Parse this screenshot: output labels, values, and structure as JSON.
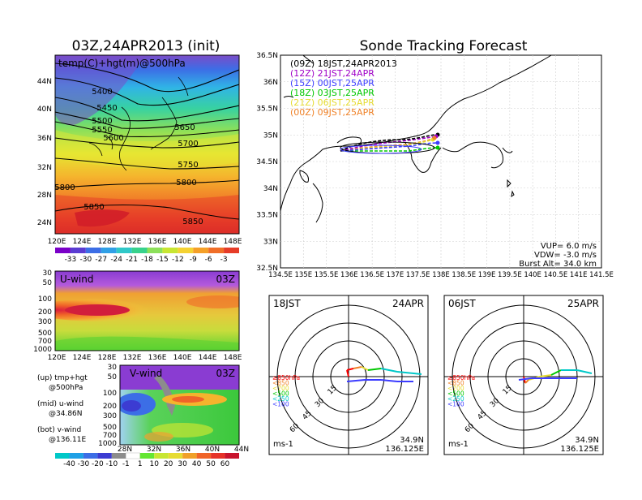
{
  "left_title": "03Z,24APR2013 (init)",
  "right_title": "Sonde Tracking Forecast",
  "map500": {
    "label": "temp(C)+hgt(m)@500hPa",
    "lat_ticks": [
      "44N",
      "40N",
      "36N",
      "32N",
      "28N",
      "24N"
    ],
    "lon_ticks": [
      "120E",
      "124E",
      "128E",
      "132E",
      "136E",
      "140E",
      "144E",
      "148E"
    ],
    "contour_labels": [
      "5400",
      "5450",
      "5500",
      "5550",
      "5600",
      "5650",
      "5700",
      "5750",
      "5800",
      "5800",
      "5850",
      "5850"
    ]
  },
  "temp_colorbar": {
    "labels": [
      "-33",
      "-30",
      "-27",
      "-24",
      "-21",
      "-18",
      "-15",
      "-12",
      "-9",
      "-6",
      "-3"
    ]
  },
  "uwind": {
    "title": "U-wind",
    "time": "03Z",
    "p_ticks": [
      "30",
      "50",
      "100",
      "200",
      "300",
      "500",
      "700",
      "1000"
    ],
    "lon_ticks": [
      "120E",
      "124E",
      "128E",
      "132E",
      "136E",
      "140E",
      "144E",
      "148E"
    ]
  },
  "vwind": {
    "title": "V-wind",
    "time": "03Z",
    "p_ticks": [
      "30",
      "50",
      "100",
      "200",
      "300",
      "500",
      "700",
      "1000"
    ],
    "lat_ticks": [
      "28N",
      "32N",
      "36N",
      "40N",
      "44N"
    ]
  },
  "wind_colorbar": {
    "labels": [
      "-40",
      "-30",
      "-20",
      "-10",
      "-1",
      "1",
      "10",
      "20",
      "30",
      "40",
      "50",
      "60"
    ]
  },
  "legend_notes": [
    {
      "l1": "(up) tmp+hgt",
      "l2": "@500hPa"
    },
    {
      "l1": "(mid) u-wind",
      "l2": "@34.86N"
    },
    {
      "l1": "(bot) v-wind",
      "l2": "@136.11E"
    }
  ],
  "track_map": {
    "lat_ticks": [
      "36.5N",
      "36N",
      "35.5N",
      "35N",
      "34.5N",
      "34N",
      "33.5N",
      "33N",
      "32.5N"
    ],
    "lon_ticks": [
      "134.5E",
      "135E",
      "135.5E",
      "136E",
      "136.5E",
      "137E",
      "137.5E",
      "138E",
      "138.5E",
      "139E",
      "139.5E",
      "140E",
      "140.5E",
      "141E",
      "141.5E"
    ],
    "legend": [
      {
        "text": "(09Z)  18JST,24APR2013",
        "color": "#000000"
      },
      {
        "text": "(12Z)  21JST,24APR",
        "color": "#a000c8"
      },
      {
        "text": "(15Z)  00JST,25APR",
        "color": "#3c3cff"
      },
      {
        "text": "(18Z)  03JST,25APR",
        "color": "#00c800"
      },
      {
        "text": "(21Z)  06JST,25APR",
        "color": "#e6dc32"
      },
      {
        "text": "(00Z)  09JST,25APR",
        "color": "#f08228"
      }
    ],
    "params": {
      "vup": "VUP=  6.0  m/s",
      "vdw": "VDW= -3.0  m/s",
      "burst": "Burst Alt=  34.0  km"
    }
  },
  "hodographs": [
    {
      "time": "18JST",
      "date": "24APR",
      "lat": "34.9N",
      "lon": "136.125E"
    },
    {
      "time": "06JST",
      "date": "25APR",
      "lat": "34.9N",
      "lon": "136.125E"
    }
  ],
  "hodo_rings": [
    "15",
    "30",
    "45",
    "60"
  ],
  "hodo_unit": "ms-1",
  "hodo_levels": [
    {
      "text": "≥850hPa",
      "color": "#ff0000"
    },
    {
      "text": "<850",
      "color": "#f08228"
    },
    {
      "text": "<700",
      "color": "#e6dc32"
    },
    {
      "text": "<500",
      "color": "#00c800"
    },
    {
      "text": "<250",
      "color": "#00c8c8"
    },
    {
      "text": "<100",
      "color": "#3c3cff"
    }
  ]
}
